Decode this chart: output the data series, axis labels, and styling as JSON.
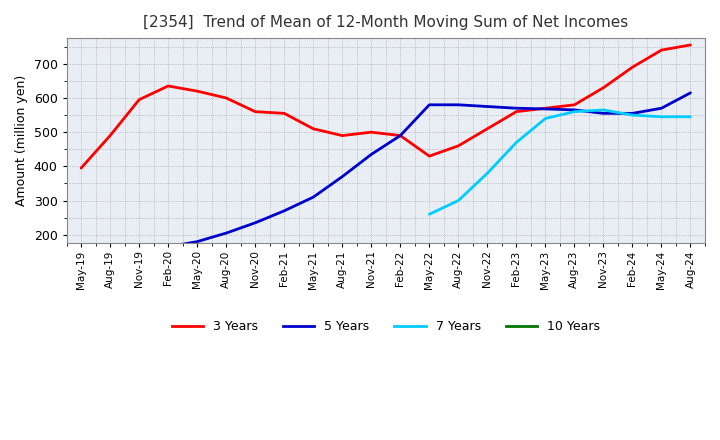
{
  "title": "[2354]  Trend of Mean of 12-Month Moving Sum of Net Incomes",
  "ylabel": "Amount (million yen)",
  "background_color": "#ffffff",
  "plot_bg_color": "#e8eef4",
  "grid_color": "#aaaaaa",
  "ylim": [
    175,
    775
  ],
  "yticks": [
    200,
    300,
    400,
    500,
    600,
    700
  ],
  "legend_labels": [
    "3 Years",
    "5 Years",
    "7 Years",
    "10 Years"
  ],
  "legend_colors": [
    "#ff0000",
    "#0000cc",
    "#00ccff",
    "#007700"
  ],
  "x_labels": [
    "May-19",
    "Aug-19",
    "Nov-19",
    "Feb-20",
    "May-20",
    "Aug-20",
    "Nov-20",
    "Feb-21",
    "May-21",
    "Aug-21",
    "Nov-21",
    "Feb-22",
    "May-22",
    "Aug-22",
    "Nov-22",
    "Feb-23",
    "May-23",
    "Aug-23",
    "Nov-23",
    "Feb-24",
    "May-24",
    "Aug-24"
  ],
  "series_3y_x": [
    0,
    1,
    2,
    3,
    4,
    5,
    6,
    7,
    8,
    9,
    10,
    11,
    12,
    13,
    14,
    15,
    16,
    17,
    18,
    19,
    20,
    21
  ],
  "series_3y_y": [
    395,
    490,
    595,
    635,
    620,
    600,
    560,
    555,
    510,
    490,
    500,
    490,
    430,
    460,
    510,
    560,
    570,
    580,
    630,
    690,
    740,
    755
  ],
  "series_5y_x": [
    3,
    4,
    5,
    6,
    7,
    8,
    9,
    10,
    11,
    12,
    13,
    14,
    15,
    16,
    17,
    18,
    19,
    20,
    21
  ],
  "series_5y_y": [
    165,
    180,
    205,
    235,
    270,
    310,
    370,
    435,
    490,
    580,
    580,
    575,
    570,
    568,
    565,
    555,
    555,
    570,
    615
  ],
  "series_7y_x": [
    12,
    13,
    14,
    15,
    16,
    17,
    18,
    19,
    20,
    21
  ],
  "series_7y_y": [
    260,
    300,
    380,
    470,
    540,
    560,
    565,
    550,
    545,
    545
  ],
  "series_10y_x": [],
  "series_10y_y": []
}
